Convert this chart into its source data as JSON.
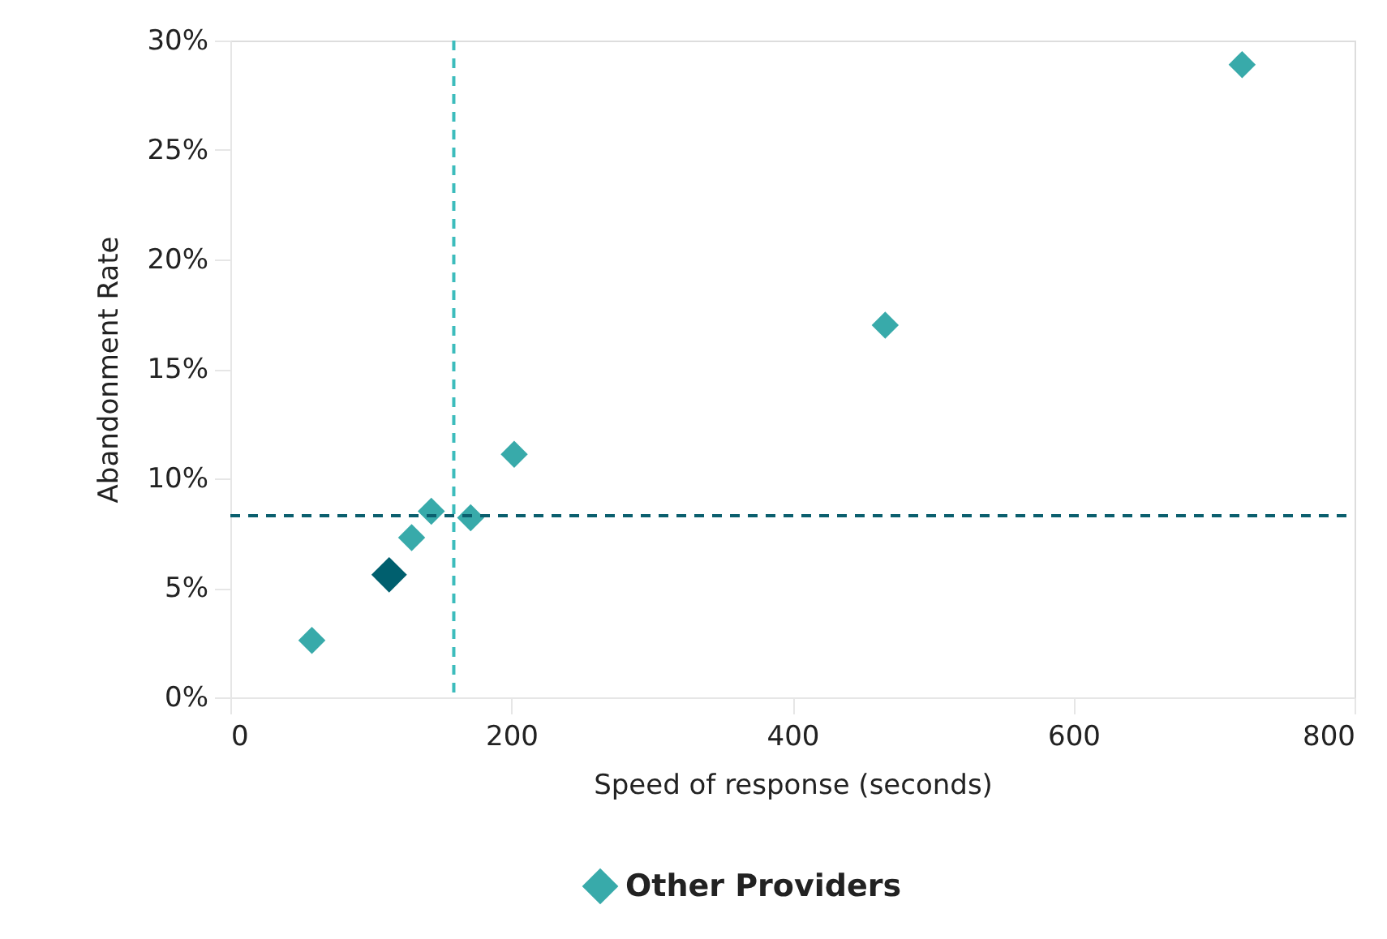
{
  "chart_data": {
    "type": "scatter",
    "xlabel": "Speed of response (seconds)",
    "ylabel": "Abandonment Rate",
    "series": [
      {
        "name": "Other Providers",
        "color": "#38aaaa",
        "x": [
          58,
          129,
          143,
          171,
          202,
          466,
          720
        ],
        "values": [
          2.6,
          7.3,
          8.5,
          8.2,
          11.1,
          17.0,
          28.9
        ]
      },
      {
        "color": "#005f6e",
        "x": [
          113
        ],
        "values": [
          5.6
        ]
      }
    ],
    "xlim": [
      0,
      800
    ],
    "xticks": [
      0,
      200,
      400,
      600,
      800
    ],
    "ylim": [
      0,
      30
    ],
    "yticks": [
      {
        "value": 0,
        "label": "0%"
      },
      {
        "value": 5,
        "label": "5%"
      },
      {
        "value": 10,
        "label": "10%"
      },
      {
        "value": 15,
        "label": "15%"
      },
      {
        "value": 20,
        "label": "20%"
      },
      {
        "value": 25,
        "label": "25%"
      },
      {
        "value": 30,
        "label": "30%"
      }
    ],
    "ref_lines": [
      {
        "axis": "x",
        "value": 159,
        "color": "#3cbcbc",
        "line_style": "dashed"
      },
      {
        "axis": "y",
        "value": 8.3,
        "color": "#0b5f6e",
        "line_style": "dashed"
      }
    ],
    "marker": "diamond",
    "grid": false,
    "legend": "bottom"
  }
}
